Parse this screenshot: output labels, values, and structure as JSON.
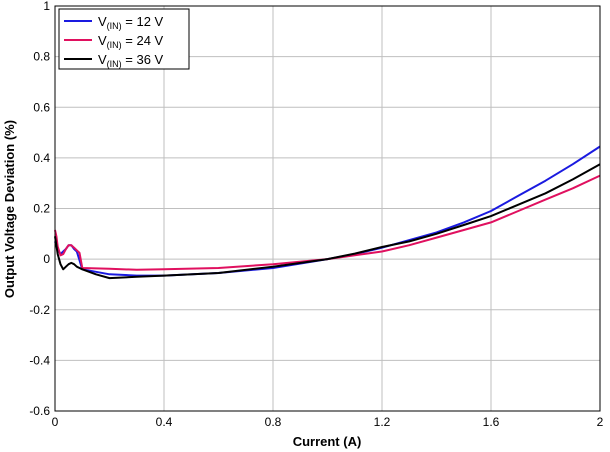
{
  "chart_data": {
    "type": "line",
    "title": "",
    "xlabel": "Current (A)",
    "ylabel": "Output Voltage Deviation (%)",
    "xlim": [
      0,
      2
    ],
    "ylim": [
      -0.6,
      1
    ],
    "xticks": [
      0,
      0.4,
      0.8,
      1.2,
      1.6,
      2
    ],
    "xtick_labels": [
      "0",
      "0.4",
      "0.8",
      "1.2",
      "1.6",
      "2"
    ],
    "yticks": [
      -0.6,
      -0.4,
      -0.2,
      0,
      0.2,
      0.4,
      0.6,
      0.8,
      1
    ],
    "ytick_labels": [
      "-0.6",
      "-0.4",
      "-0.2",
      "0",
      "0.2",
      "0.4",
      "0.6",
      "0.8",
      "1"
    ],
    "grid": true,
    "legend_position": "top-left",
    "series": [
      {
        "name": "V(IN) = 12 V",
        "label_main": "V",
        "label_sub": "(IN)",
        "label_rest": " = 12 V",
        "color": "#1a1ae0",
        "x": [
          0,
          0.01,
          0.02,
          0.03,
          0.04,
          0.05,
          0.06,
          0.07,
          0.08,
          0.1,
          0.2,
          0.3,
          0.4,
          0.6,
          0.8,
          1.0,
          1.1,
          1.2,
          1.3,
          1.4,
          1.5,
          1.6,
          1.7,
          1.8,
          1.9,
          2.0
        ],
        "y": [
          0.07,
          0.04,
          0.02,
          0.03,
          0.04,
          0.055,
          0.055,
          0.04,
          0.03,
          -0.04,
          -0.06,
          -0.065,
          -0.065,
          -0.055,
          -0.035,
          0.0,
          0.02,
          0.045,
          0.075,
          0.105,
          0.145,
          0.19,
          0.25,
          0.31,
          0.375,
          0.445
        ]
      },
      {
        "name": "V(IN) = 24 V",
        "label_main": "V",
        "label_sub": "(IN)",
        "label_rest": " = 24 V",
        "color": "#e0105f",
        "x": [
          0,
          0.005,
          0.01,
          0.02,
          0.03,
          0.04,
          0.05,
          0.06,
          0.07,
          0.08,
          0.09,
          0.1,
          0.2,
          0.3,
          0.4,
          0.6,
          0.8,
          1.0,
          1.1,
          1.2,
          1.3,
          1.4,
          1.5,
          1.6,
          1.7,
          1.8,
          1.9,
          2.0
        ],
        "y": [
          0.115,
          0.09,
          0.05,
          0.015,
          0.02,
          0.04,
          0.055,
          0.055,
          0.045,
          0.035,
          0.025,
          -0.035,
          -0.038,
          -0.042,
          -0.04,
          -0.035,
          -0.02,
          0.0,
          0.015,
          0.03,
          0.055,
          0.085,
          0.115,
          0.145,
          0.19,
          0.235,
          0.28,
          0.33
        ]
      },
      {
        "name": "V(IN) = 36 V",
        "label_main": "V",
        "label_sub": "(IN)",
        "label_rest": " = 36 V",
        "color": "#000000",
        "x": [
          0,
          0.01,
          0.02,
          0.03,
          0.04,
          0.05,
          0.06,
          0.07,
          0.08,
          0.09,
          0.1,
          0.15,
          0.2,
          0.3,
          0.4,
          0.6,
          0.8,
          1.0,
          1.1,
          1.2,
          1.3,
          1.4,
          1.5,
          1.6,
          1.7,
          1.8,
          1.9,
          2.0
        ],
        "y": [
          0.09,
          0.02,
          -0.02,
          -0.04,
          -0.03,
          -0.02,
          -0.015,
          -0.02,
          -0.03,
          -0.035,
          -0.04,
          -0.06,
          -0.075,
          -0.07,
          -0.065,
          -0.055,
          -0.03,
          0.0,
          0.022,
          0.048,
          0.07,
          0.1,
          0.135,
          0.17,
          0.215,
          0.26,
          0.315,
          0.375
        ]
      }
    ]
  }
}
